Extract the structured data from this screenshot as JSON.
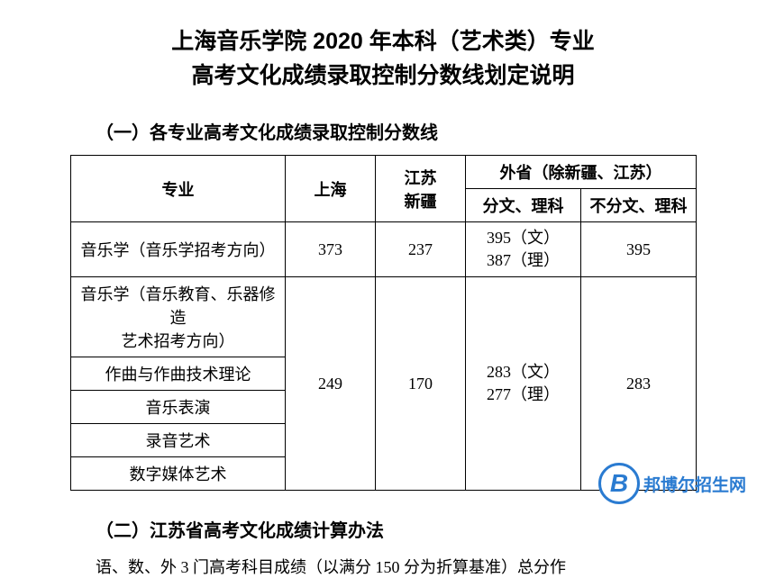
{
  "title_line1": "上海音乐学院 2020 年本科（艺术类）专业",
  "title_line2": "高考文化成绩录取控制分数线划定说明",
  "section1_heading": "（一）各专业高考文化成绩录取控制分数线",
  "section2_heading": "（二）江苏省高考文化成绩计算办法",
  "body_sentence": "语、数、外 3 门高考科目成绩（以满分 150 分为折算基准）总分作",
  "table": {
    "header": {
      "major": "专业",
      "sh": "上海",
      "jsxj_l1": "江苏",
      "jsxj_l2": "新疆",
      "other_group": "外省（除新疆、江苏）",
      "split": "分文、理科",
      "nosplit": "不分文、理科"
    },
    "rows": {
      "r1_major": "音乐学（音乐学招考方向）",
      "r1_sh": "373",
      "r1_jsxj": "237",
      "r1_split_l1": "395（文）",
      "r1_split_l2": "387（理）",
      "r1_nosplit": "395",
      "r2_major_l1": "音乐学（音乐教育、乐器修造",
      "r2_major_l2": "艺术招考方向）",
      "r3_major": "作曲与作曲技术理论",
      "r4_major": "音乐表演",
      "r5_major": "录音艺术",
      "r6_major": "数字媒体艺术",
      "grp_sh": "249",
      "grp_jsxj": "170",
      "grp_split_l1": "283（文）",
      "grp_split_l2": "277（理）",
      "grp_nosplit": "283"
    }
  },
  "watermark": {
    "letter": "B",
    "text": "邦博尔招生网"
  },
  "colors": {
    "text": "#000000",
    "border": "#000000",
    "background": "#ffffff",
    "brand": "#2a7bd1"
  },
  "typography": {
    "title_fontsize": 25,
    "section_fontsize": 20,
    "table_fontsize": 18,
    "body_fontsize": 18
  }
}
